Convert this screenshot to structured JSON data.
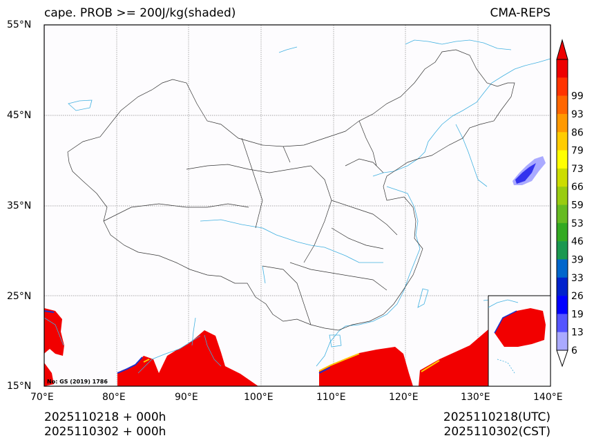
{
  "title": "cape. PROB >= 200J/kg(shaded)",
  "model": "CMA-REPS",
  "lat_ticks": [
    "55°N",
    "45°N",
    "35°N",
    "25°N",
    "15°N"
  ],
  "lon_ticks": [
    "70°E",
    "80°E",
    "90°E",
    "100°E",
    "110°E",
    "120°E",
    "130°E",
    "140°E"
  ],
  "map_extent": {
    "lon": [
      70,
      140
    ],
    "lat": [
      15,
      55
    ]
  },
  "colorbar": {
    "labels": [
      "6",
      "13",
      "19",
      "26",
      "33",
      "39",
      "46",
      "53",
      "59",
      "66",
      "73",
      "79",
      "86",
      "93",
      "99"
    ],
    "colors": [
      "#aaaaff",
      "#5555ff",
      "#0000ff",
      "#0022cc",
      "#0066cc",
      "#1a9850",
      "#33aa22",
      "#66bb22",
      "#99cc11",
      "#ccdd00",
      "#ffff00",
      "#ffcc00",
      "#ff9900",
      "#ff6600",
      "#ff3300",
      "#ee0000"
    ]
  },
  "annotation": "No: GS (2019) 1786",
  "times": {
    "init_utc": "2025110218  +  000h",
    "init_cst": "2025110302  +  000h",
    "valid_utc": "2025110218(UTC)",
    "valid_cst": "2025110302(CST)"
  },
  "colors": {
    "shade": "#f20000",
    "coast": "#3fb0e0",
    "border": "#333333"
  }
}
